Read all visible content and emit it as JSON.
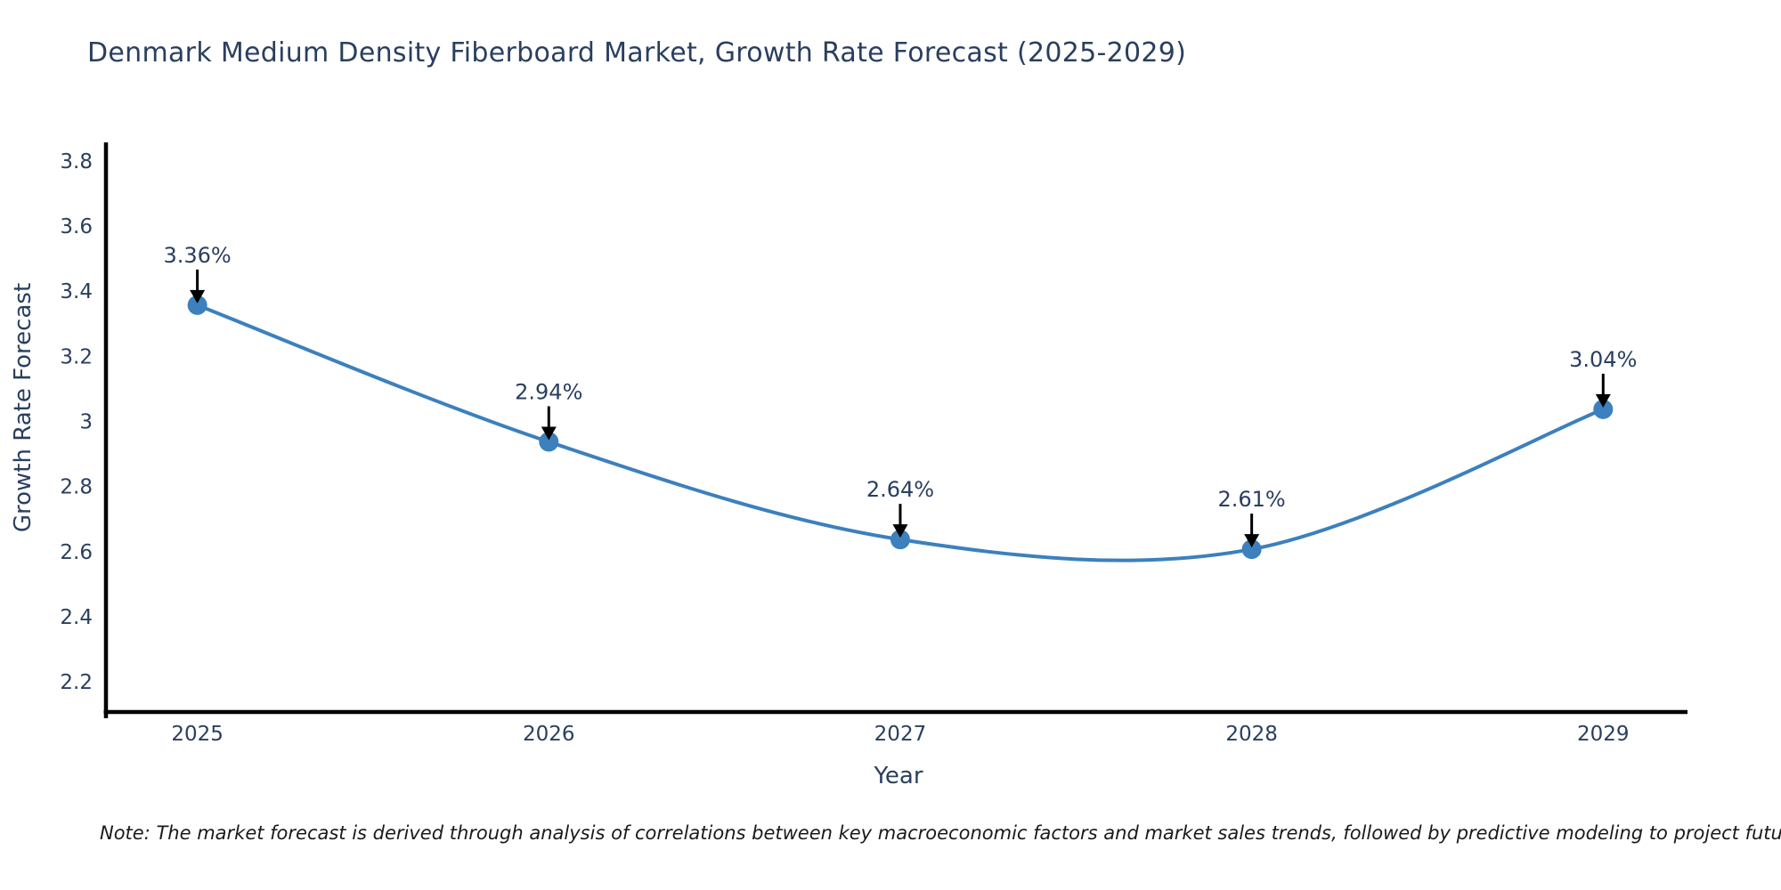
{
  "chart_data": {
    "type": "line",
    "line_shape": "spline",
    "title": "Denmark Medium Density Fiberboard Market, Growth Rate Forecast (2025-2029)",
    "xlabel": "Year",
    "ylabel": "Growth Rate Forecast",
    "x": [
      2025,
      2026,
      2027,
      2028,
      2029
    ],
    "x_tick_labels": [
      "2025",
      "2026",
      "2027",
      "2028",
      "2029"
    ],
    "series": [
      {
        "name": "Growth Rate Forecast",
        "values": [
          3.36,
          2.94,
          2.64,
          2.61,
          3.04
        ]
      }
    ],
    "point_labels": [
      "3.36%",
      "2.94%",
      "2.64%",
      "2.61%",
      "3.04%"
    ],
    "y_ticks": [
      2.2,
      2.4,
      2.6,
      2.8,
      3.0,
      3.2,
      3.4,
      3.6,
      3.8
    ],
    "y_tick_labels": [
      "2.2",
      "2.4",
      "2.6",
      "2.8",
      "3",
      "3.2",
      "3.4",
      "3.6",
      "3.8"
    ],
    "xlim": [
      2024.74,
      2029.24
    ],
    "ylim": [
      2.11,
      3.86
    ],
    "grid": false,
    "legend_position": "none",
    "markers": true,
    "colors": {
      "line": "#3c80bd",
      "marker": "#3c80bd",
      "axis": "#000000",
      "tick_text": "#2a3f5f",
      "annotation_text": "#2a3f5f",
      "annotation_arrow": "#000000",
      "title_text": "#2a3f5f",
      "background": "#ffffff"
    },
    "note": "Note: The market forecast is derived through analysis of correlations between key macroeconomic factors and market sales trends, followed by predictive modeling to project future sales"
  }
}
